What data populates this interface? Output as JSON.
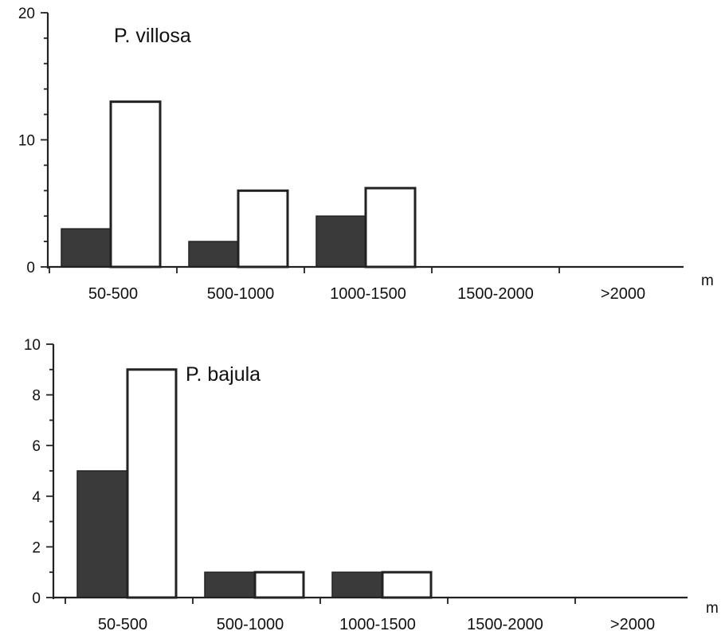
{
  "chart_data": [
    {
      "type": "bar",
      "title": "P. villosa",
      "xlabel": "m",
      "ylabel": "",
      "ylim": [
        0,
        20
      ],
      "yticks": [
        "0",
        "10",
        "20"
      ],
      "categories": [
        "50-500",
        "500-1000",
        "1000-1500",
        "1500-2000",
        ">2000"
      ],
      "series": [
        {
          "values": [
            3,
            2,
            4,
            0,
            0
          ],
          "color": "#3a3a3a"
        },
        {
          "values": [
            13,
            6,
            6.2,
            0,
            0
          ],
          "color": "#ffffff"
        }
      ],
      "grid": false,
      "legend": "none"
    },
    {
      "type": "bar",
      "title": "P. bajula",
      "xlabel": "m",
      "ylabel": "",
      "ylim": [
        0,
        10
      ],
      "yticks": [
        "0",
        "2",
        "4",
        "6",
        "8",
        "10"
      ],
      "categories": [
        "50-500",
        "500-1000",
        "1000-1500",
        "1500-2000",
        ">2000"
      ],
      "series": [
        {
          "values": [
            5,
            1,
            1,
            0,
            0
          ],
          "color": "#3a3a3a"
        },
        {
          "values": [
            9,
            1,
            1,
            0,
            0
          ],
          "color": "#ffffff"
        }
      ],
      "grid": false,
      "legend": "none"
    }
  ]
}
